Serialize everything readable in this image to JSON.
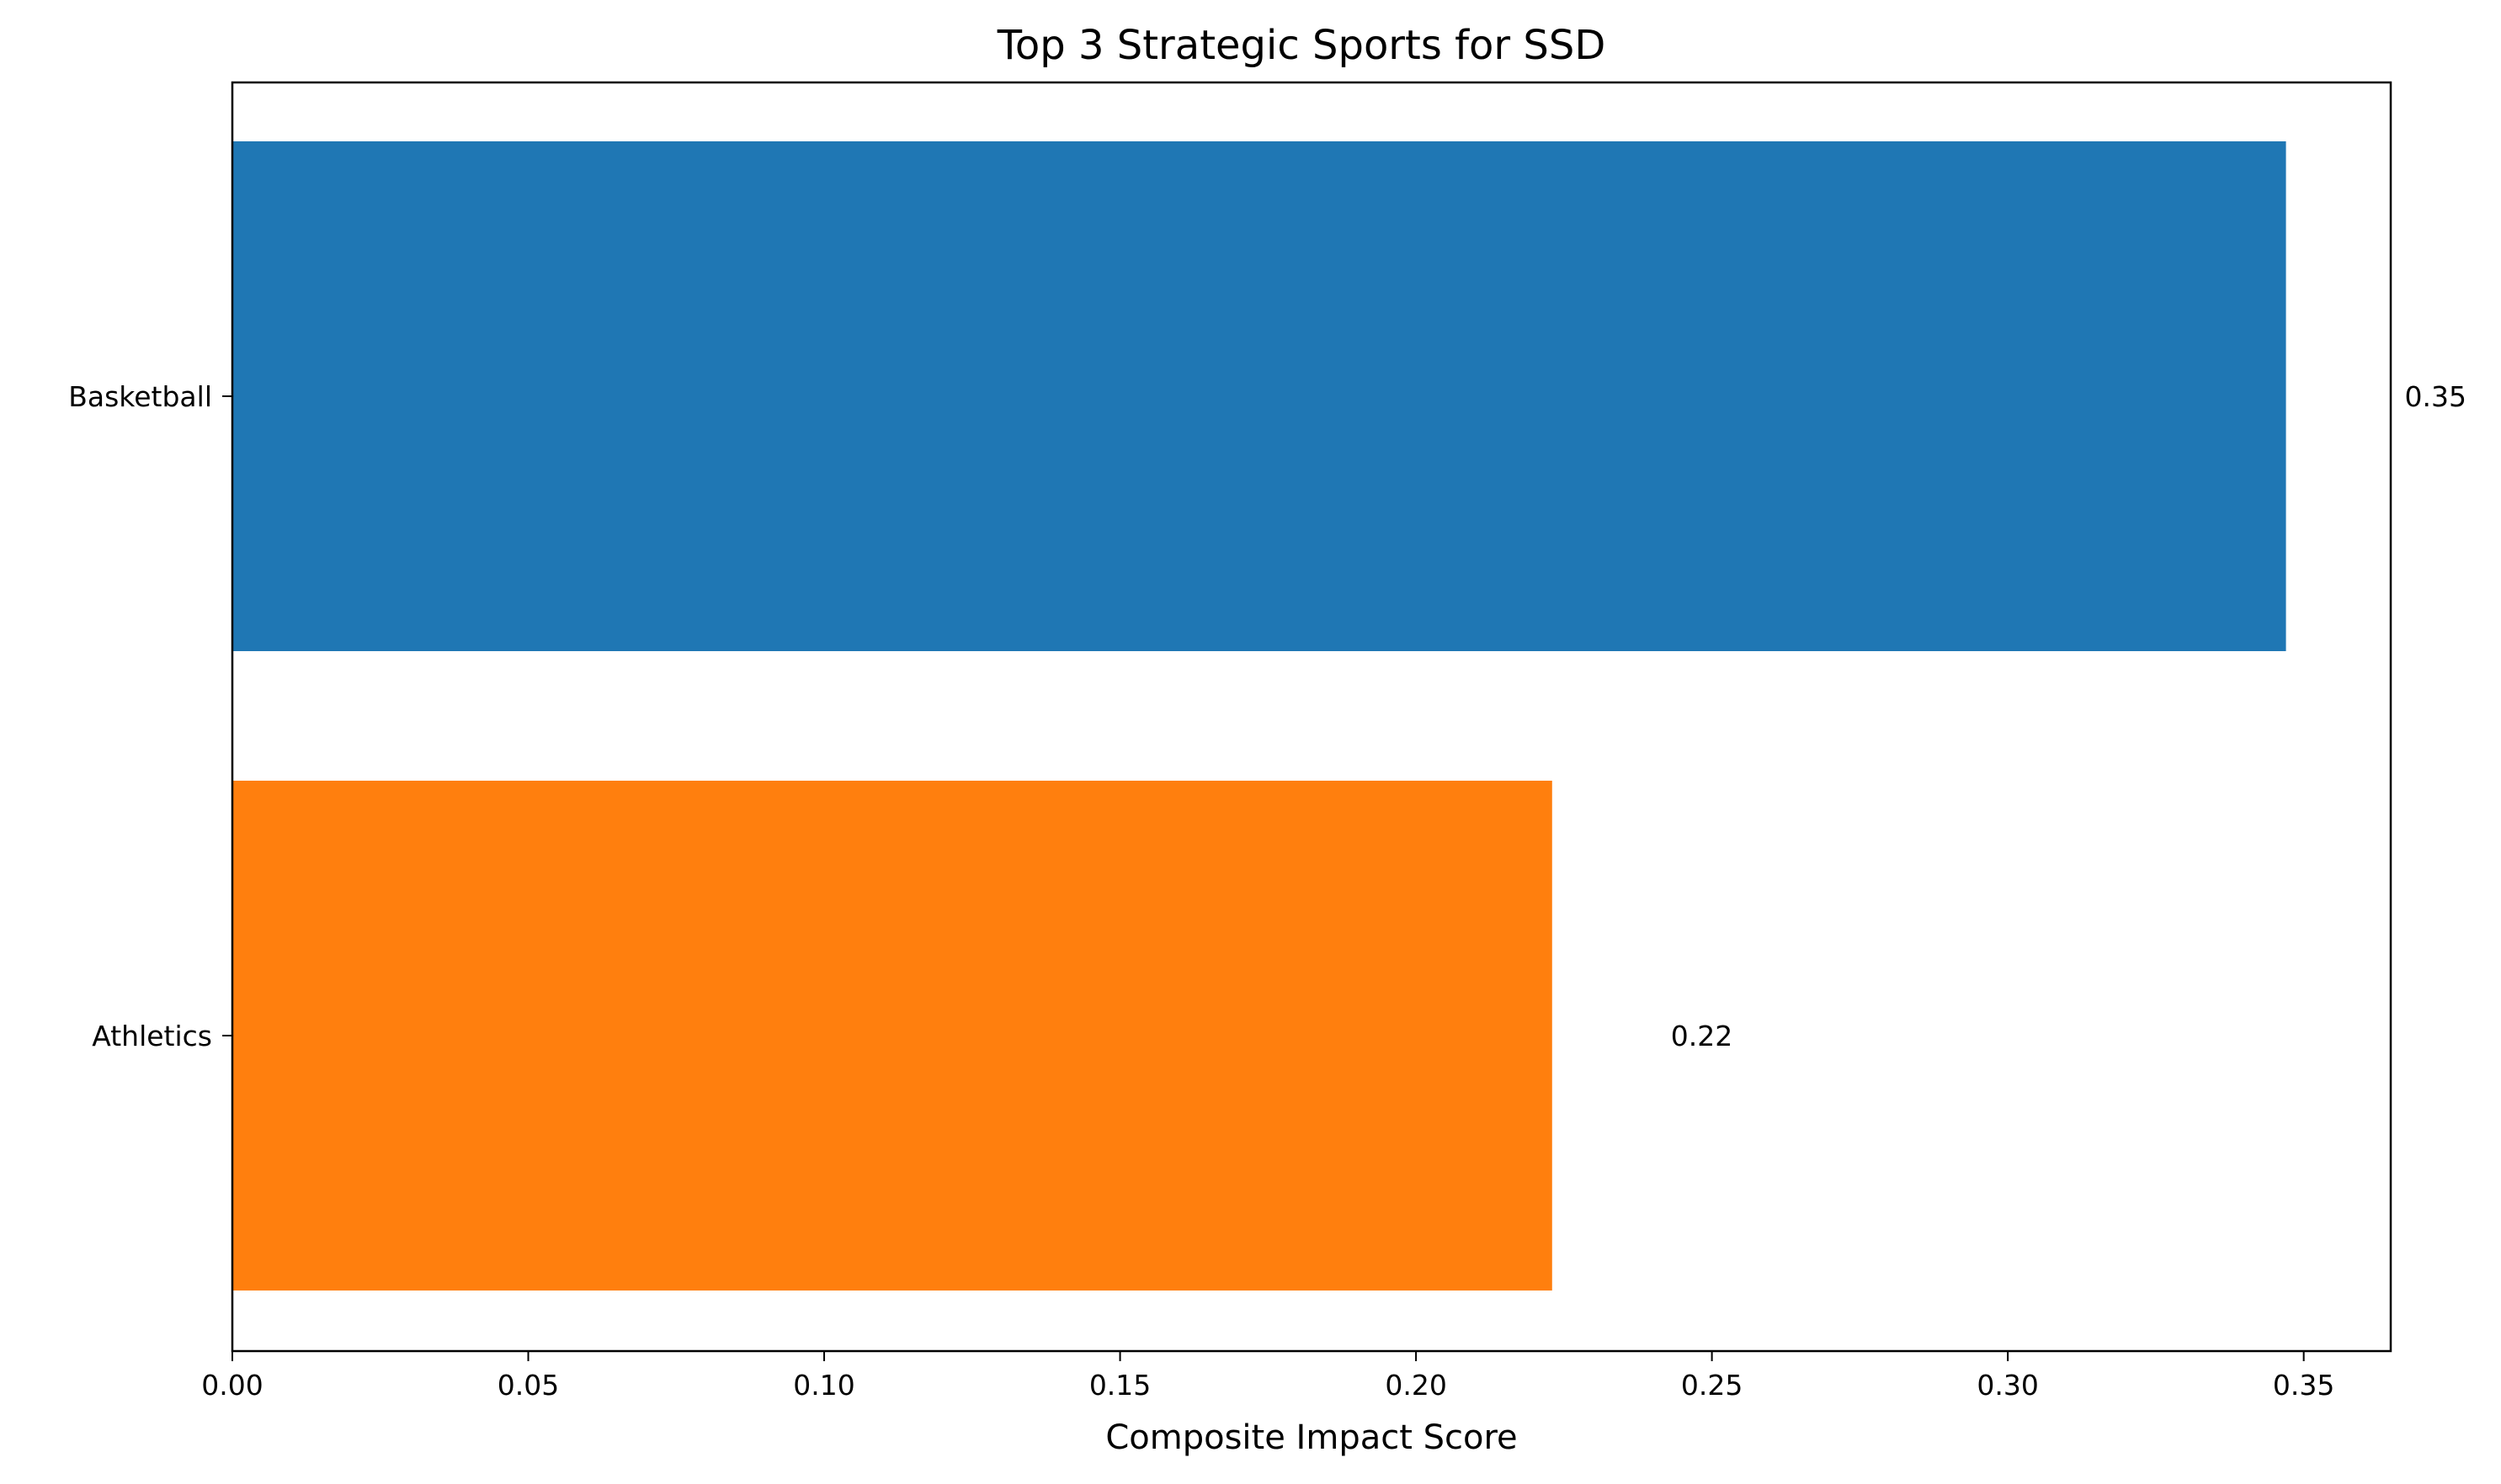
{
  "chart_data": {
    "type": "bar",
    "orientation": "horizontal",
    "title": "Top 3 Strategic Sports for SSD",
    "xlabel": "Composite Impact Score",
    "ylabel": "",
    "categories": [
      "Basketball",
      "Athletics"
    ],
    "values": [
      0.347,
      0.223
    ],
    "value_labels": [
      "0.35",
      "0.22"
    ],
    "colors": [
      "#1f77b4",
      "#ff7f0e"
    ],
    "xlim": [
      0,
      0.3647
    ],
    "xticks": [
      0.0,
      0.05,
      0.1,
      0.15,
      0.2,
      0.25,
      0.3,
      0.35
    ],
    "xtick_labels": [
      "0.00",
      "0.05",
      "0.10",
      "0.15",
      "0.20",
      "0.25",
      "0.30",
      "0.35"
    ],
    "grid": false,
    "legend": "none"
  }
}
